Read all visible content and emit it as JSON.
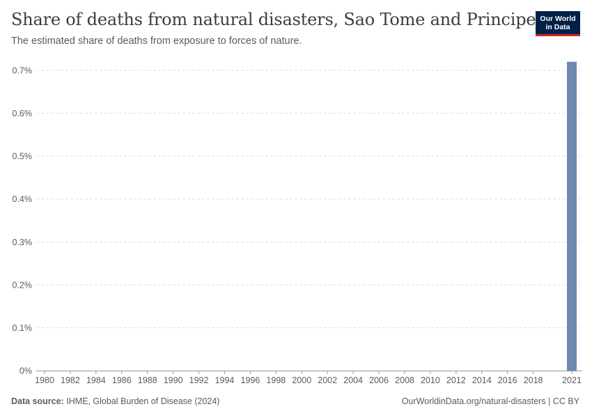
{
  "header": {
    "title": "Share of deaths from natural disasters, Sao Tome and Principe",
    "subtitle": "The estimated share of deaths from exposure to forces of nature."
  },
  "logo": {
    "line1": "Our World",
    "line2": "in Data"
  },
  "footer": {
    "source_label": "Data source:",
    "source_text": "IHME, Global Burden of Disease (2024)",
    "url_text": "OurWorldinData.org/natural-disasters | CC BY"
  },
  "colors": {
    "bar": "#6d87b0",
    "grid": "#dddddd",
    "axis": "#999999",
    "text": "#5b5b5b"
  },
  "chart_data": {
    "type": "bar",
    "title": "Share of deaths from natural disasters, Sao Tome and Principe",
    "xlabel": "",
    "ylabel": "",
    "x_ticks": [
      "1980",
      "1982",
      "1984",
      "1986",
      "1988",
      "1990",
      "1992",
      "1994",
      "1996",
      "1998",
      "2000",
      "2002",
      "2004",
      "2006",
      "2008",
      "2010",
      "2012",
      "2014",
      "2016",
      "2018",
      "2021"
    ],
    "y_ticks": [
      "0%",
      "0.1%",
      "0.2%",
      "0.3%",
      "0.4%",
      "0.5%",
      "0.6%",
      "0.7%"
    ],
    "ylim": [
      0,
      0.7
    ],
    "xlim": [
      1980,
      2021
    ],
    "grid": true,
    "series": [
      {
        "name": "Sao Tome and Principe",
        "points": [
          {
            "year": 2021,
            "value": 0.72
          }
        ]
      }
    ]
  }
}
